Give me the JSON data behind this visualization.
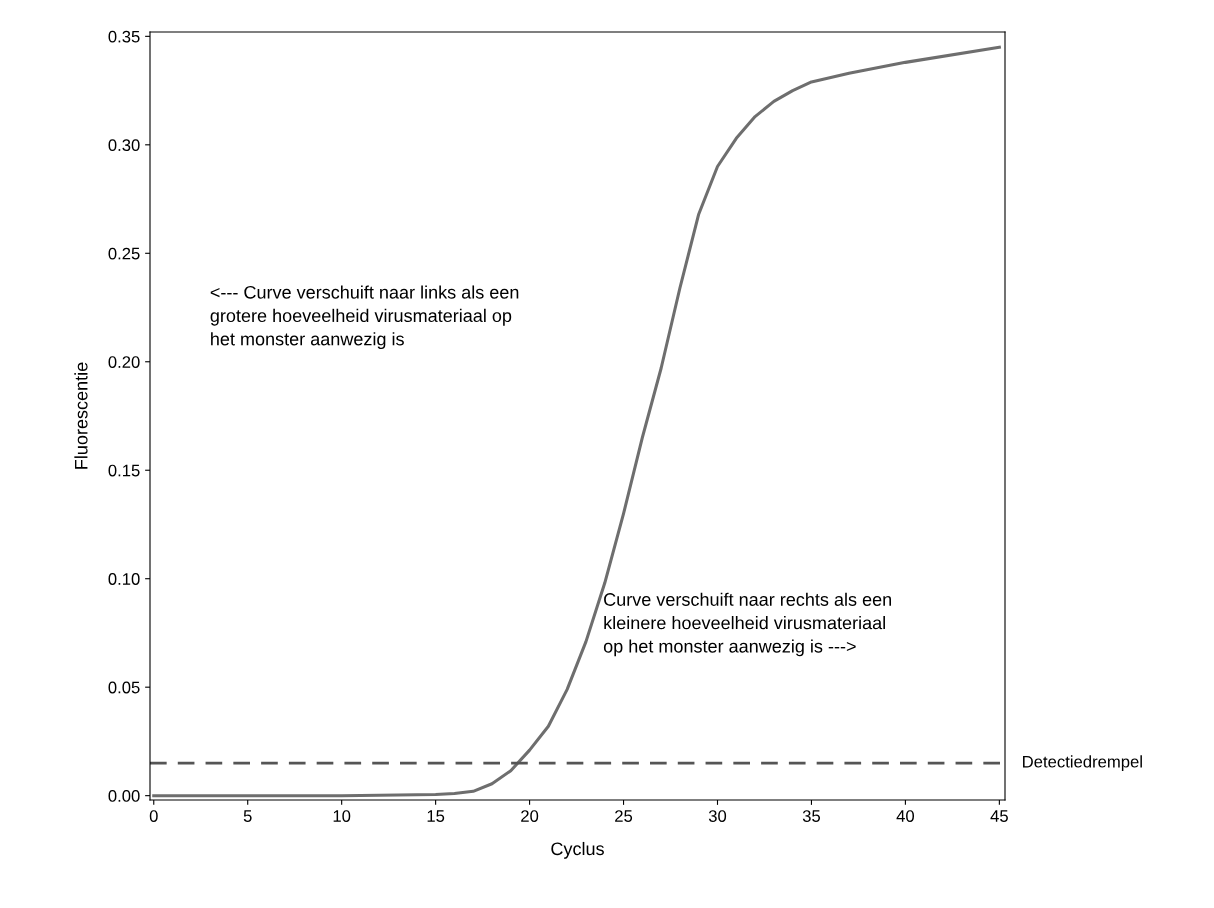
{
  "chart_data": {
    "type": "line",
    "xlabel": "Cyclus",
    "ylabel": "Fluorescentie",
    "x": [
      0,
      5,
      10,
      15,
      16,
      17,
      18,
      19,
      20,
      21,
      22,
      23,
      24,
      25,
      26,
      27,
      28,
      29,
      30,
      31,
      32,
      33,
      34,
      35,
      37,
      40,
      45
    ],
    "series": [
      {
        "color": "#6e6e6e",
        "values": [
          0.0,
          0.0,
          0.0,
          0.0005,
          0.001,
          0.002,
          0.0055,
          0.0115,
          0.021,
          0.032,
          0.049,
          0.071,
          0.098,
          0.13,
          0.165,
          0.197,
          0.234,
          0.268,
          0.29,
          0.303,
          0.313,
          0.32,
          0.325,
          0.329,
          0.333,
          0.338,
          0.345
        ]
      }
    ],
    "xlim": [
      -0.2,
      45.3
    ],
    "ylim": [
      -0.002,
      0.352
    ],
    "xticks": [
      0,
      5,
      10,
      15,
      20,
      25,
      30,
      35,
      40,
      45
    ],
    "yticks": [
      {
        "value": 0,
        "label": "0.00"
      },
      {
        "value": 0.05,
        "label": "0.05"
      },
      {
        "value": 0.1,
        "label": "0.10"
      },
      {
        "value": 0.15,
        "label": "0.15"
      },
      {
        "value": 0.2,
        "label": "0.20"
      },
      {
        "value": 0.25,
        "label": "0.25"
      },
      {
        "value": 0.3,
        "label": "0.30"
      },
      {
        "value": 0.35,
        "label": "0.35"
      }
    ],
    "ref_lines": [
      {
        "axis": "y",
        "value": 0.015,
        "label": "Detectiedrempel",
        "color": "#555555",
        "line_style": "dashed"
      }
    ],
    "annotations": [
      "<--- Curve verschuift naar links als een\ngrotere hoeveelheid virusmateriaal op\nhet monster aanwezig is",
      "Curve verschuift naar rechts als een\nkleinere hoeveelheid virusmateriaal\nop het monster aanwezig is --->"
    ],
    "grid": false,
    "legend": false,
    "marker": "none",
    "line_style": "solid"
  }
}
